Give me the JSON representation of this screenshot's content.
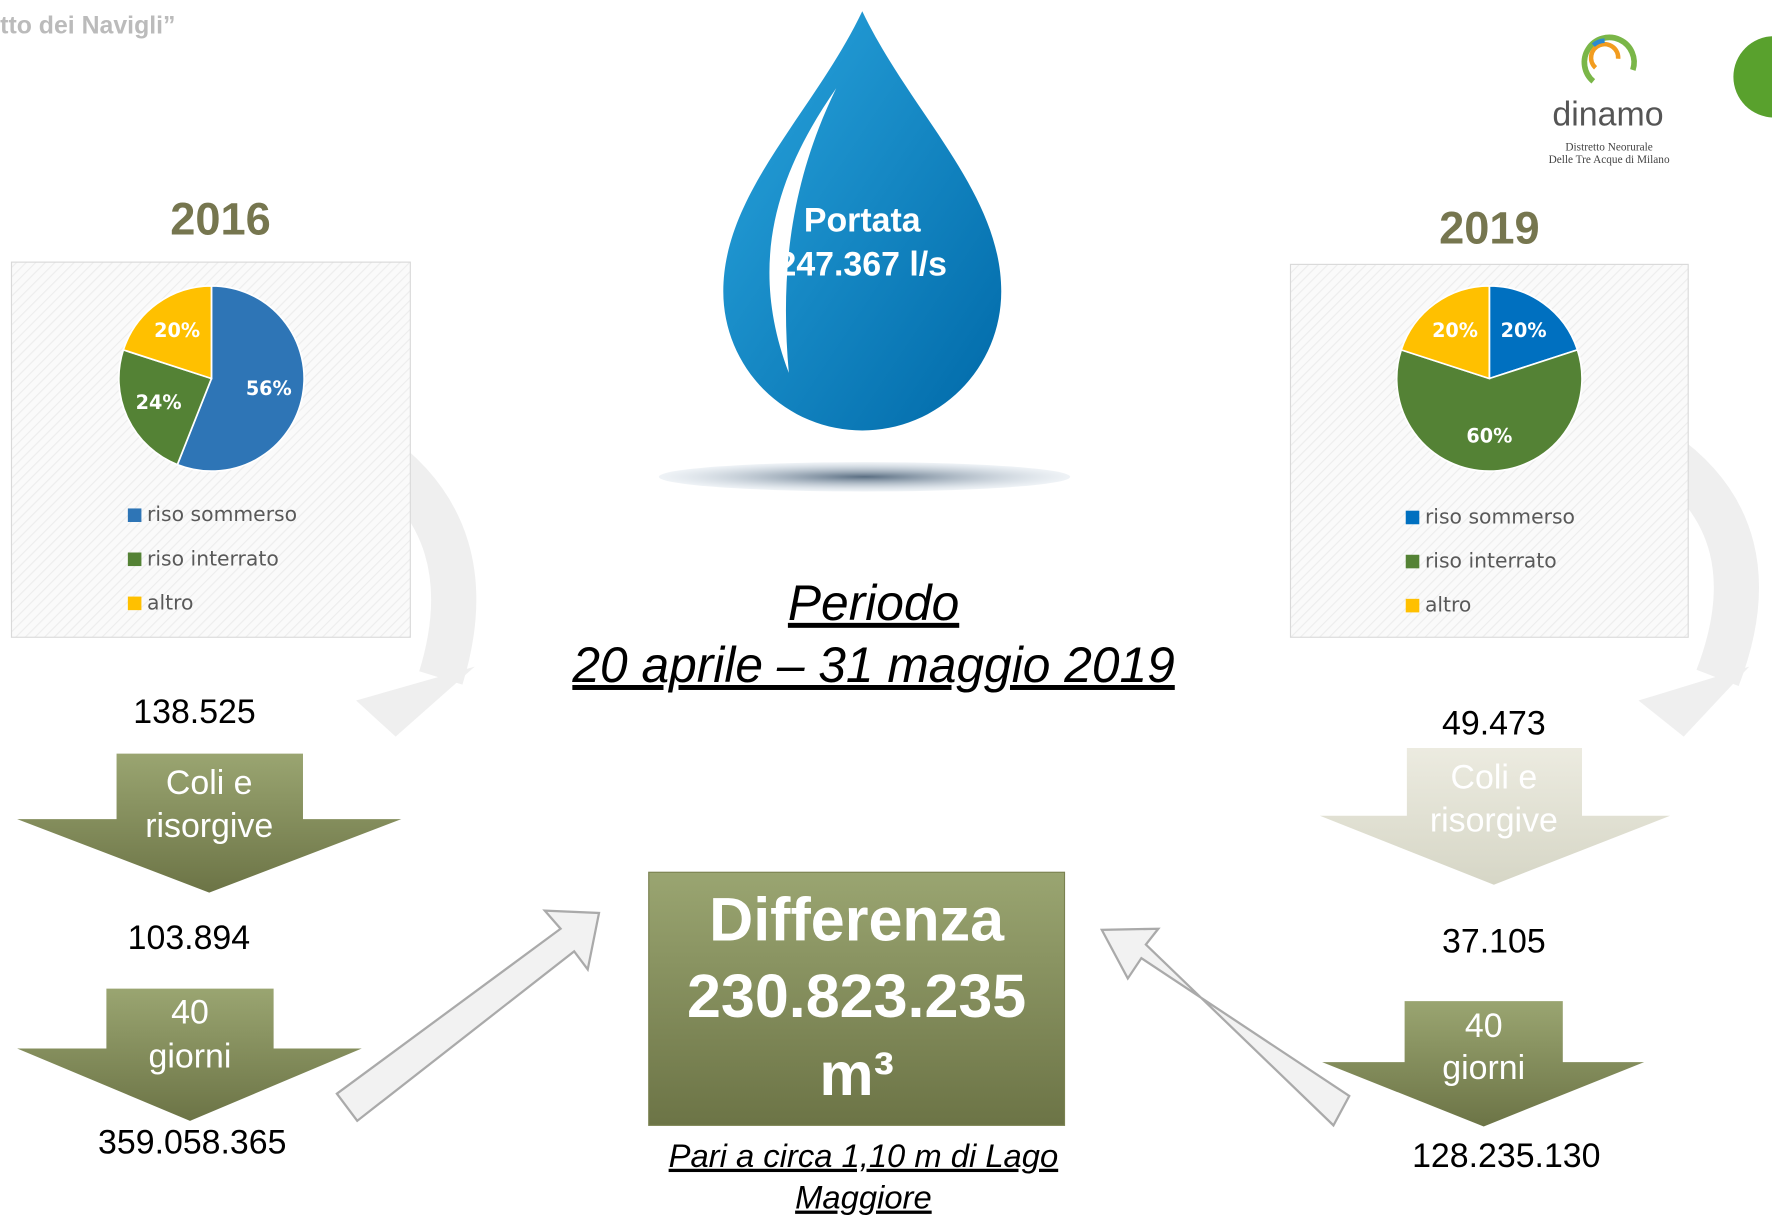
{
  "header": {
    "title": "tto dei Navigli”"
  },
  "logo": {
    "name": "dinamo",
    "subtitle": [
      "Distretto Neorurale",
      "Delle Tre Acque di Milano"
    ]
  },
  "chart_data": [
    {
      "type": "pie",
      "title": "2016",
      "categories": [
        "riso sommerso",
        "riso interrato",
        "altro"
      ],
      "values": [
        56,
        24,
        20
      ],
      "value_labels": [
        "56%",
        "24%",
        "20%"
      ],
      "colors": [
        "#2e75b6",
        "#548235",
        "#ffc000"
      ]
    },
    {
      "type": "pie",
      "title": "2019",
      "categories": [
        "riso sommerso",
        "riso interrato",
        "altro"
      ],
      "values": [
        20,
        60,
        20
      ],
      "value_labels": [
        "20%",
        "60%",
        "20%"
      ],
      "colors": [
        "#0070c0",
        "#548235",
        "#ffc000"
      ]
    }
  ],
  "drop": {
    "label": "Portata",
    "value": "247.367 l/s"
  },
  "period": {
    "label": "Periodo",
    "dates": "20 aprile – 31 maggio 2019"
  },
  "left": {
    "start": "138.525",
    "step1": [
      "Coli e",
      "risorgive"
    ],
    "mid": "103.894",
    "step2": [
      "40",
      "giorni"
    ],
    "end": "359.058.365"
  },
  "right": {
    "start": "49.473",
    "step1": [
      "Coli e",
      "risorgive"
    ],
    "mid": "37.105",
    "step2": [
      "40",
      "giorni"
    ],
    "end": "128.235.130"
  },
  "difference": {
    "lines": [
      "Differenza",
      "230.823.235",
      "m³"
    ],
    "note": [
      "Pari a circa 1,10 m di Lago",
      "Maggiore"
    ]
  }
}
